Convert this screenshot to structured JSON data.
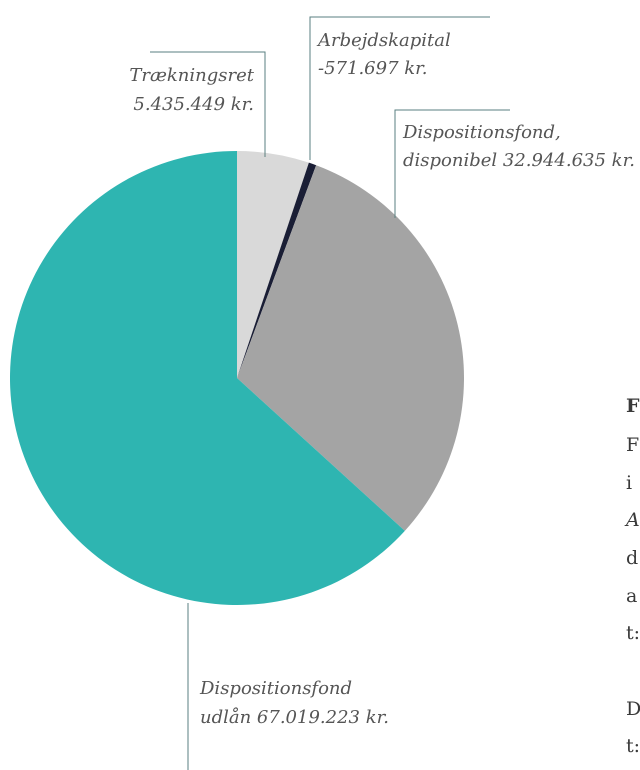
{
  "colors": {
    "traekningsret": "#d9d9d9",
    "arbejdskapital": "#1a1e35",
    "disponibel": "#a4a4a4",
    "udlaan": "#2eb5b1",
    "leader": "#5a7f80",
    "label_text": "#555555"
  },
  "chart_data": {
    "type": "pie",
    "title": "",
    "slices": [
      {
        "label_line1": "Trækningsret",
        "label_line2": "5.435.449 kr.",
        "value": 5435449,
        "color_key": "traekningsret"
      },
      {
        "label_line1": "Arbejdskapital",
        "label_line2": "-571.697 kr.",
        "value": 571697,
        "color_key": "arbejdskapital"
      },
      {
        "label_line1": "Dispositionsfond,",
        "label_line2": "disponibel 32.944.635 kr.",
        "value": 32944635,
        "color_key": "disponibel"
      },
      {
        "label_line1": "Dispositionsfond",
        "label_line2": "udlån 67.019.223 kr.",
        "value": 67019223,
        "color_key": "udlaan"
      }
    ]
  },
  "side_text": {
    "line1": "F",
    "line2": "F",
    "line3": "i",
    "line4": "A",
    "line5": "d",
    "line6": "a",
    "line7": "t:",
    "line8": "D",
    "line9": "t:"
  }
}
